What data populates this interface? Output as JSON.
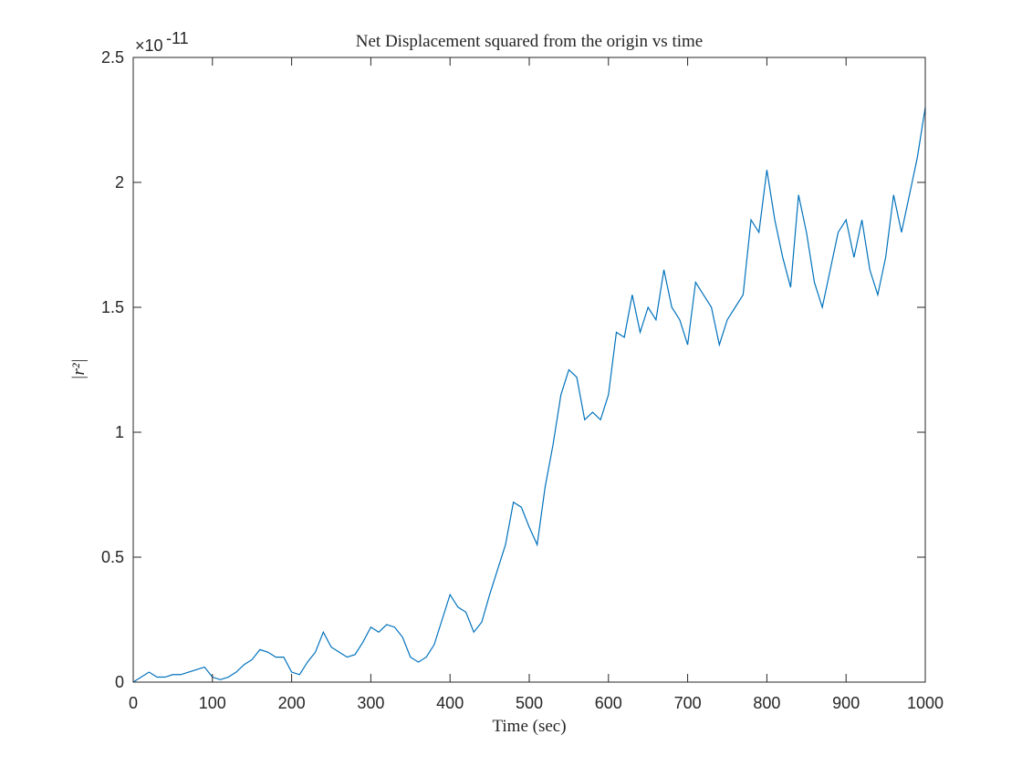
{
  "chart_data": {
    "type": "line",
    "title": "Net Displacement squared from the origin vs time",
    "xlabel": "Time (sec)",
    "ylabel": "|r²|",
    "y_exponent": {
      "base": "×10",
      "power": "-11"
    },
    "x": [
      0,
      10,
      20,
      30,
      40,
      50,
      60,
      70,
      80,
      90,
      100,
      110,
      120,
      130,
      140,
      150,
      160,
      170,
      180,
      190,
      200,
      210,
      220,
      230,
      240,
      250,
      260,
      270,
      280,
      290,
      300,
      310,
      320,
      330,
      340,
      350,
      360,
      370,
      380,
      390,
      400,
      410,
      420,
      430,
      440,
      450,
      460,
      470,
      480,
      490,
      500,
      510,
      520,
      530,
      540,
      550,
      560,
      570,
      580,
      590,
      600,
      610,
      620,
      630,
      640,
      650,
      660,
      670,
      680,
      690,
      700,
      710,
      720,
      730,
      740,
      750,
      760,
      770,
      780,
      790,
      800,
      810,
      820,
      830,
      840,
      850,
      860,
      870,
      880,
      890,
      900,
      910,
      920,
      930,
      940,
      950,
      960,
      970,
      980,
      990,
      1000
    ],
    "series": [
      {
        "name": "r2",
        "color": "#0072bd",
        "values": [
          0,
          0.02,
          0.04,
          0.02,
          0.02,
          0.03,
          0.03,
          0.04,
          0.05,
          0.06,
          0.02,
          0.01,
          0.02,
          0.04,
          0.07,
          0.09,
          0.13,
          0.12,
          0.1,
          0.1,
          0.04,
          0.03,
          0.08,
          0.12,
          0.2,
          0.14,
          0.12,
          0.1,
          0.11,
          0.16,
          0.22,
          0.2,
          0.23,
          0.22,
          0.18,
          0.1,
          0.08,
          0.1,
          0.15,
          0.25,
          0.35,
          0.3,
          0.28,
          0.2,
          0.24,
          0.35,
          0.45,
          0.55,
          0.72,
          0.7,
          0.62,
          0.55,
          0.78,
          0.95,
          1.15,
          1.25,
          1.22,
          1.05,
          1.08,
          1.05,
          1.15,
          1.4,
          1.38,
          1.55,
          1.4,
          1.5,
          1.45,
          1.65,
          1.5,
          1.45,
          1.35,
          1.6,
          1.55,
          1.5,
          1.35,
          1.45,
          1.5,
          1.55,
          1.85,
          1.8,
          2.05,
          1.85,
          1.7,
          1.58,
          1.95,
          1.8,
          1.6,
          1.5,
          1.65,
          1.8,
          1.85,
          1.7,
          1.85,
          1.65,
          1.55,
          1.7,
          1.95,
          1.8,
          1.95,
          2.1,
          2.3
        ]
      }
    ],
    "xlim": [
      0,
      1000
    ],
    "xticks": [
      0,
      100,
      200,
      300,
      400,
      500,
      600,
      700,
      800,
      900,
      1000
    ],
    "ylim": [
      0,
      2.5
    ],
    "yticks": [
      0,
      0.5,
      1,
      1.5,
      2,
      2.5
    ],
    "grid": false
  }
}
